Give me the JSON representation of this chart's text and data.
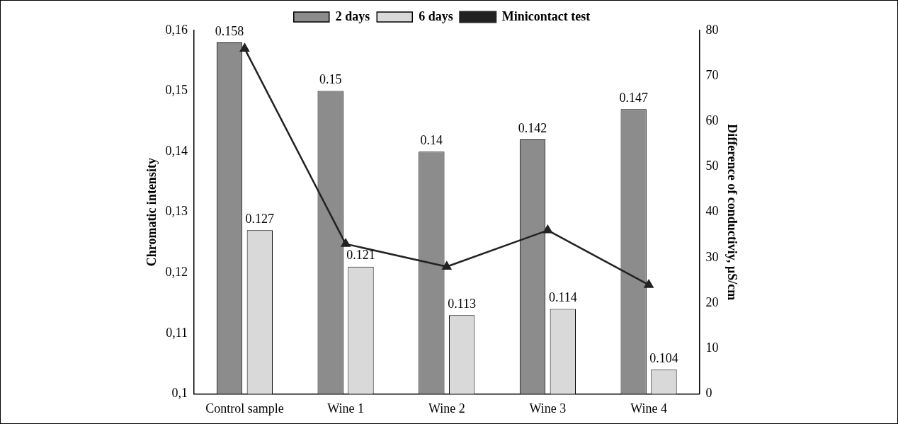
{
  "chart_data": {
    "type": "bar",
    "categories": [
      "Control sample",
      "Wine 1",
      "Wine 2",
      "Wine 3",
      "Wine 4"
    ],
    "ylabel": "Chromatic intensity",
    "y2label": "Difference of conductiviy, µS/cm",
    "ylim": [
      0.1,
      0.16
    ],
    "yticks": [
      {
        "value": 0.1,
        "label": "0,1"
      },
      {
        "value": 0.11,
        "label": "0,11"
      },
      {
        "value": 0.12,
        "label": "0,12"
      },
      {
        "value": 0.13,
        "label": "0,13"
      },
      {
        "value": 0.14,
        "label": "0,14"
      },
      {
        "value": 0.15,
        "label": "0,15"
      },
      {
        "value": 0.16,
        "label": "0,16"
      }
    ],
    "y2lim": [
      0,
      80
    ],
    "y2ticks": [
      0,
      10,
      20,
      30,
      40,
      50,
      60,
      70,
      80
    ],
    "legend": "top",
    "grid": false,
    "series": [
      {
        "name": "2 days",
        "color": "#8c8c8c",
        "values": [
          0.158,
          0.15,
          0.14,
          0.142,
          0.147
        ],
        "value_labels": [
          "0.158",
          "0.15",
          "0.14",
          "0.142",
          "0.147"
        ]
      },
      {
        "name": "6 days",
        "color": "#d9d9d9",
        "values": [
          0.127,
          0.121,
          0.113,
          0.114,
          0.104
        ],
        "value_labels": [
          "0.127",
          "0.121",
          "0.113",
          "0.114",
          "0.104"
        ]
      },
      {
        "name": "Minicontact test",
        "type": "line",
        "axis": "y2",
        "color": "#222222",
        "marker": "triangle",
        "values": [
          76,
          33,
          28,
          36,
          24
        ]
      }
    ]
  }
}
